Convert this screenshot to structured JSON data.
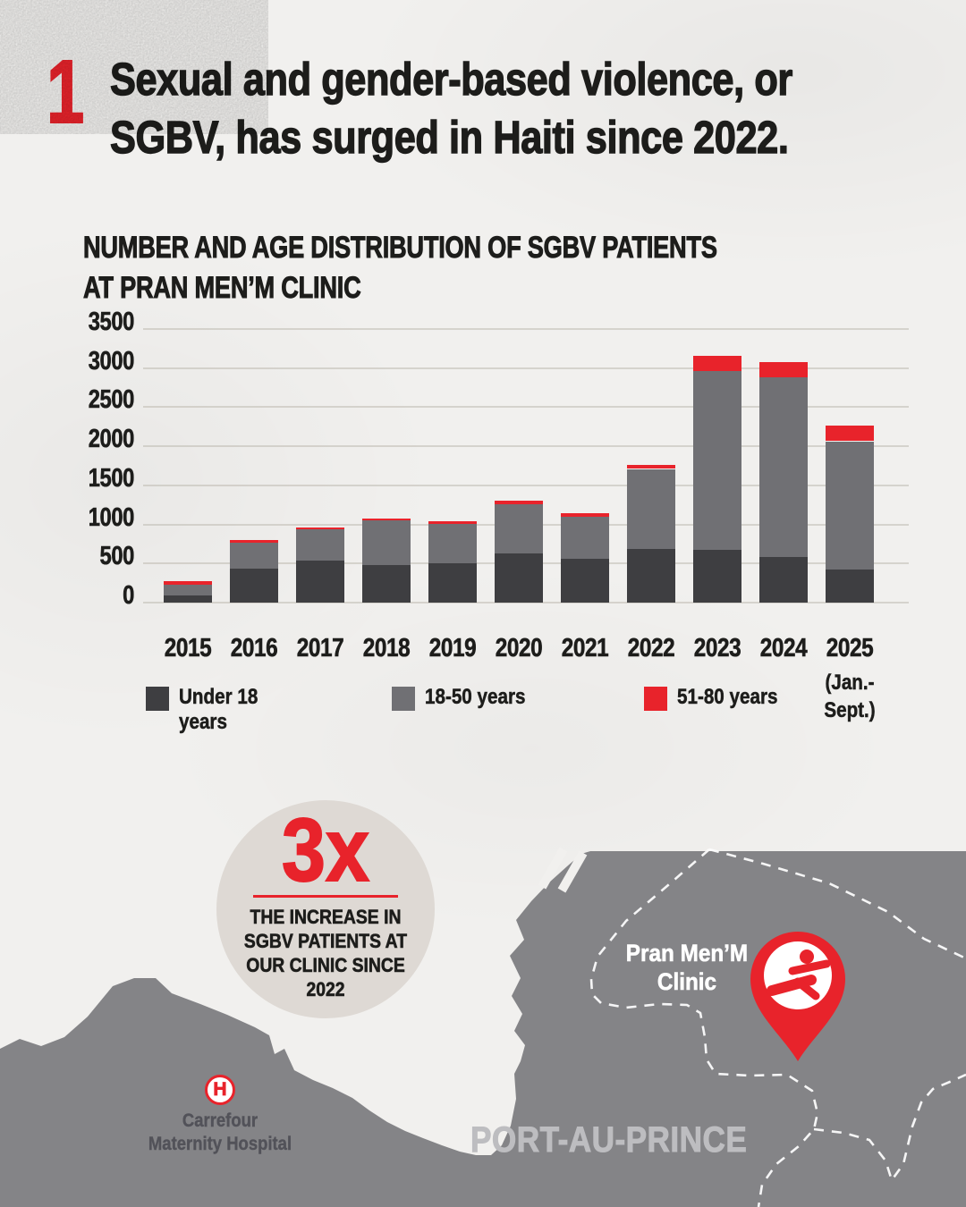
{
  "colors": {
    "accent_red": "#e8232b",
    "bar_dark": "#3e3e41",
    "bar_mid": "#707074",
    "map_gray": "#848487",
    "paper": "#f1f0ee",
    "circle_bg": "#ded9d4",
    "ink": "#1d1d1b",
    "region_text": "#bdbdc0",
    "hospital_text": "#525259",
    "gridline": "#bab5ac"
  },
  "header": {
    "number": "1",
    "title_lines": [
      "Sexual and gender-based violence, or",
      "SGBV, has surged in Haiti since 2022."
    ]
  },
  "chart": {
    "title_lines": [
      "NUMBER AND AGE DISTRIBUTION OF SGBV PATIENTS",
      "AT PRAN MEN’M CLINIC"
    ]
  },
  "chart_data": {
    "type": "bar",
    "stacked": true,
    "title": "NUMBER AND AGE DISTRIBUTION OF SGBV PATIENTS AT PRAN MEN’M CLINIC",
    "categories": [
      "2015",
      "2016",
      "2017",
      "2018",
      "2019",
      "2020",
      "2021",
      "2022",
      "2023",
      "2024",
      "2025"
    ],
    "last_category_note": "(Jan.- Sept.)",
    "series": [
      {
        "name": "Under 18 years",
        "color": "#3e3e41",
        "values": [
          90,
          435,
          535,
          480,
          500,
          625,
          560,
          685,
          670,
          580,
          420
        ]
      },
      {
        "name": "18-50 years",
        "color": "#707074",
        "values": [
          140,
          330,
          400,
          570,
          510,
          630,
          540,
          1025,
          2290,
          2305,
          1645
        ]
      },
      {
        "name": "51-80 years",
        "color": "#e8232b",
        "values": [
          40,
          40,
          30,
          30,
          30,
          50,
          40,
          50,
          195,
          195,
          205
        ]
      }
    ],
    "totals_approx": [
      270,
      805,
      965,
      1080,
      1040,
      1305,
      1140,
      1760,
      3155,
      3080,
      2270
    ],
    "xlabel": "",
    "ylabel": "",
    "ylim": [
      0,
      3500
    ],
    "ytick_step": 500,
    "yticks": [
      0,
      500,
      1000,
      1500,
      2000,
      2500,
      3000,
      3500
    ],
    "grid": true,
    "legend_position": "bottom"
  },
  "highlight": {
    "value": "3x",
    "caption_lines": [
      "THE INCREASE IN",
      "SGBV PATIENTS AT",
      "OUR CLINIC SINCE",
      "2022"
    ]
  },
  "map": {
    "clinic_label_lines": [
      "Pran Men’M",
      "Clinic"
    ],
    "hospital_icon_letter": "H",
    "hospital_label_lines": [
      "Carrefour",
      "Maternity Hospital"
    ],
    "region_label": "PORT-AU-PRINCE"
  }
}
